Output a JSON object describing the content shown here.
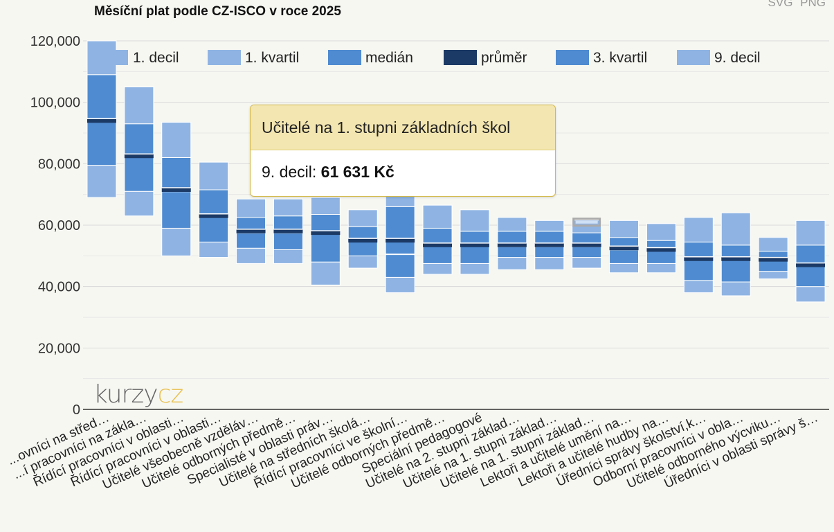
{
  "export": {
    "svg": "SVG",
    "png": "PNG"
  },
  "tooltip": {
    "title": "Učitelé na 1. stupni základních škol",
    "label": "9. decil:",
    "value": "61 631 Kč"
  },
  "logo": {
    "part1": "kurzy",
    "part2": "cz"
  },
  "colors": {
    "decil": "#8fb4e3",
    "kvartil": "#4f8bd0",
    "prumer": "#1c3a66",
    "grid": "#d9d9d9",
    "axis": "#333333"
  },
  "legend": [
    {
      "label": "1. decil",
      "color": "#8fb4e3"
    },
    {
      "label": "1. kvartil",
      "color": "#8fb4e3"
    },
    {
      "label": "medián",
      "color": "#4f8bd0"
    },
    {
      "label": "průměr",
      "color": "#1c3a66"
    },
    {
      "label": "3. kvartil",
      "color": "#4f8bd0"
    },
    {
      "label": "9. decil",
      "color": "#8fb4e3"
    }
  ],
  "chart_data": {
    "type": "box",
    "title": "Měsíční plat podle CZ-ISCO v roce 2025",
    "xlabel": "",
    "ylabel": "",
    "ylim": [
      0,
      120000
    ],
    "yticks": [
      0,
      20000,
      40000,
      60000,
      80000,
      100000,
      120000
    ],
    "ytick_labels": [
      "0",
      "20,000",
      "40,000",
      "60,000",
      "80,000",
      "100,000",
      "120,000"
    ],
    "grid": true,
    "legend_position": "top",
    "categories": [
      "...ovníci na střed…",
      "...í pracovníci na zákla…",
      "Řídící pracovníci v oblasti…",
      "Řídící pracovníci v oblasti…",
      "Učitelé všeobecně vzděláv…",
      "Učitelé odborných předmě…",
      "Specialisté v oblasti práv…",
      "Učitelé na středních školá…",
      "Řídící pracovníci ve školní…",
      "Učitelé odborných předmě…",
      "Speciální pedagogové",
      "Učitelé na 2. stupni základ…",
      "Učitelé na 1. stupni základ…",
      "Učitelé na 1. stupni základ…",
      "Lektoři a učitelé umění na…",
      "Lektoři a učitelé hudby na…",
      "Úředníci správy školství,k…",
      "Odborní pracovníci v obla…",
      "Učitelé odborného výcviku…",
      "Úředníci v oblasti správy š…"
    ],
    "series": [
      {
        "name": "1. decil",
        "values": [
          69000,
          63000,
          50000,
          49500,
          47500,
          47500,
          40500,
          46000,
          38000,
          44000,
          44000,
          45500,
          45500,
          46000,
          44500,
          44500,
          38000,
          37000,
          42500,
          35000
        ]
      },
      {
        "name": "1. kvartil",
        "values": [
          79500,
          71000,
          59000,
          54500,
          52500,
          52000,
          48000,
          50000,
          43000,
          47500,
          47500,
          49500,
          49500,
          49500,
          47500,
          47500,
          42000,
          41500,
          45000,
          40000
        ]
      },
      {
        "name": "medián",
        "values": [
          94000,
          82500,
          71000,
          63000,
          57500,
          57500,
          57500,
          55000,
          50500,
          53500,
          53500,
          53000,
          53000,
          53000,
          52000,
          52000,
          49000,
          49000,
          48500,
          47000
        ]
      },
      {
        "name": "průměr",
        "values": [
          94000,
          82500,
          71500,
          63000,
          58000,
          58000,
          57500,
          55000,
          55000,
          53500,
          53500,
          53500,
          53500,
          53500,
          52500,
          52000,
          49000,
          49000,
          48800,
          47000
        ]
      },
      {
        "name": "3. kvartil",
        "values": [
          109000,
          93000,
          82000,
          71500,
          62500,
          63000,
          63500,
          59500,
          66000,
          59000,
          58000,
          58000,
          58000,
          57500,
          56000,
          55000,
          54500,
          53500,
          51500,
          53500
        ]
      },
      {
        "name": "9. decil",
        "values": [
          120000,
          105000,
          93500,
          80500,
          68500,
          68500,
          69000,
          65000,
          70000,
          66500,
          65000,
          62500,
          61500,
          61631,
          61500,
          60500,
          62500,
          64000,
          56000,
          61500
        ]
      }
    ],
    "highlighted": {
      "category_index": 13,
      "series": "9. decil",
      "value": 61631
    }
  }
}
